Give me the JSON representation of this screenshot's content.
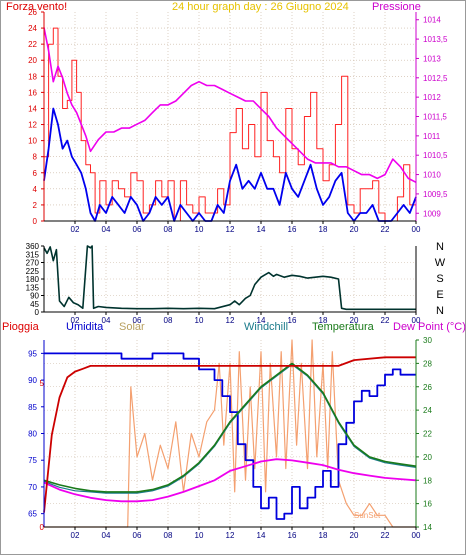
{
  "colors": {
    "background": "#ffffff",
    "wind_avg": "#0000ee",
    "wind_gust": "#ff2222",
    "pressure": "#ee00ee",
    "wind_dir": "#00332e",
    "rain": "#cc0000",
    "humidity": "#0000dd",
    "solar": "#f4a070",
    "windchill": "#1a7a8a",
    "temperature": "#1a7a1a",
    "dew_point": "#ee00ee",
    "axis_red": "#dd0000",
    "axis_blue": "#0000cc",
    "axis_green": "#1a7a1a",
    "axis_magenta": "#cc00cc",
    "grid": "#c9b5a0"
  },
  "chart_data": [
    {
      "id": "wind",
      "type": "line",
      "title": "24 hour graph day : 26 Giugno 2024",
      "xlabel": "",
      "ylabel_left": "Forza vento!",
      "ylabel_right": "Pressione",
      "x_ticks": [
        "02",
        "04",
        "06",
        "08",
        "10",
        "12",
        "14",
        "16",
        "18",
        "20",
        "22",
        "00"
      ],
      "y_left_ticks": [
        "0",
        "2",
        "4",
        "6",
        "8",
        "10",
        "12",
        "14",
        "16",
        "18",
        "20",
        "22",
        "24",
        "26"
      ],
      "y_left_range": [
        0,
        26
      ],
      "y_right_ticks": [
        "1009",
        "1009,5",
        "1010",
        "1010,5",
        "1011",
        "1011,5",
        "1012",
        "1012,5",
        "1013",
        "1013,5",
        "1014"
      ],
      "y_right_range": [
        1008.8,
        1014.2
      ],
      "x_range": [
        0,
        24
      ],
      "series": [
        {
          "key": "gust",
          "color_key": "wind_gust",
          "x": [
            0,
            0.3,
            0.6,
            0.9,
            1.2,
            1.5,
            1.8,
            2.1,
            2.4,
            2.7,
            3.0,
            3.3,
            3.6,
            4.0,
            4.4,
            4.8,
            5.2,
            5.6,
            6.0,
            6.4,
            6.8,
            7.2,
            7.6,
            8.0,
            8.4,
            8.8,
            9.2,
            9.6,
            10.0,
            10.4,
            10.8,
            11.2,
            11.6,
            12.0,
            12.4,
            12.8,
            13.2,
            13.6,
            14.0,
            14.4,
            14.8,
            15.2,
            15.6,
            16.0,
            16.4,
            16.8,
            17.2,
            17.6,
            18.0,
            18.4,
            18.8,
            19.2,
            19.6,
            20.0,
            20.4,
            20.8,
            21.2,
            21.6,
            22.0,
            22.4,
            22.8,
            23.2,
            23.6,
            24.0
          ],
          "values": [
            8,
            22,
            24,
            18,
            14,
            15,
            20,
            16,
            10,
            7,
            6,
            1,
            5,
            2,
            5,
            4,
            3,
            6,
            5,
            1,
            2,
            5,
            3,
            5,
            0,
            5,
            2,
            1,
            3,
            1,
            1,
            4,
            2,
            11,
            14,
            9,
            12,
            8,
            16,
            10,
            8,
            6,
            14,
            9,
            7,
            13,
            16,
            9,
            5,
            7,
            12,
            18,
            2,
            1,
            4,
            4,
            5,
            1,
            0,
            0,
            3,
            7,
            2,
            5
          ]
        },
        {
          "key": "avg",
          "color_key": "wind_avg",
          "x": [
            0,
            0.3,
            0.6,
            0.9,
            1.2,
            1.5,
            1.8,
            2.1,
            2.4,
            2.7,
            3.0,
            3.3,
            3.6,
            4.0,
            4.4,
            4.8,
            5.2,
            5.6,
            6.0,
            6.4,
            6.8,
            7.2,
            7.6,
            8.0,
            8.4,
            8.8,
            9.2,
            9.6,
            10.0,
            10.4,
            10.8,
            11.2,
            11.6,
            12.0,
            12.4,
            12.8,
            13.2,
            13.6,
            14.0,
            14.4,
            14.8,
            15.2,
            15.6,
            16.0,
            16.4,
            16.8,
            17.2,
            17.6,
            18.0,
            18.4,
            18.8,
            19.2,
            19.6,
            20.0,
            20.4,
            20.8,
            21.2,
            21.6,
            22.0,
            22.4,
            22.8,
            23.2,
            23.6,
            24.0
          ],
          "values": [
            5,
            9,
            14,
            12,
            9,
            10,
            8,
            7,
            6,
            4,
            1,
            0,
            2,
            1,
            3,
            2,
            1,
            3,
            2,
            0,
            1,
            3,
            2,
            3,
            0,
            2,
            1,
            0,
            1,
            0,
            0,
            2,
            1,
            5,
            7,
            4,
            5,
            4,
            6,
            4,
            4,
            2,
            6,
            4,
            3,
            5,
            7,
            4,
            2,
            3,
            5,
            6,
            1,
            0,
            1,
            1,
            2,
            0,
            0,
            0,
            1,
            2,
            1,
            3
          ]
        },
        {
          "key": "pressure",
          "color_key": "pressure",
          "axis": "right",
          "x": [
            0,
            0.3,
            0.6,
            0.9,
            1.2,
            1.5,
            1.8,
            2.1,
            2.4,
            2.7,
            3.0,
            3.5,
            4.0,
            4.5,
            5.0,
            5.5,
            6.0,
            6.5,
            7.0,
            7.5,
            8.0,
            8.5,
            9.0,
            9.5,
            10.0,
            10.5,
            11.0,
            11.5,
            12.0,
            12.5,
            13.0,
            13.5,
            14.0,
            14.5,
            15.0,
            15.5,
            16.0,
            16.5,
            17.0,
            17.5,
            18.0,
            18.5,
            19.0,
            19.5,
            20.0,
            20.5,
            21.0,
            21.5,
            22.0,
            22.5,
            23.0,
            23.5,
            24.0
          ],
          "values": [
            1013.8,
            1013.2,
            1012.4,
            1012.8,
            1012.5,
            1012.1,
            1011.8,
            1011.6,
            1011.3,
            1011.0,
            1010.6,
            1010.9,
            1011.1,
            1011.1,
            1011.2,
            1011.2,
            1011.3,
            1011.4,
            1011.6,
            1011.8,
            1011.8,
            1011.9,
            1012.1,
            1012.3,
            1012.4,
            1012.3,
            1012.3,
            1012.2,
            1012.1,
            1012.0,
            1011.9,
            1011.9,
            1011.7,
            1011.5,
            1011.2,
            1011.0,
            1010.8,
            1010.6,
            1010.4,
            1010.3,
            1010.3,
            1010.3,
            1010.2,
            1010.2,
            1010.1,
            1010.0,
            1010.0,
            1009.9,
            1010.0,
            1010.4,
            1010.2,
            1009.9,
            1009.8
          ]
        }
      ]
    },
    {
      "id": "wind_direction",
      "type": "line",
      "title": "",
      "x_ticks": [
        "02",
        "04",
        "06",
        "08",
        "10",
        "12",
        "14",
        "16",
        "18",
        "20",
        "22",
        "00"
      ],
      "y_left_ticks": [
        "0",
        "45",
        "90",
        "135",
        "180",
        "225",
        "270",
        "315",
        "360"
      ],
      "y_left_range": [
        0,
        360
      ],
      "y_right_labels": [
        "N",
        "W",
        "S",
        "E",
        "N"
      ],
      "x_range": [
        0,
        24
      ],
      "series": [
        {
          "key": "direction",
          "color_key": "wind_dir",
          "x": [
            0,
            0.2,
            0.4,
            0.6,
            0.8,
            1.0,
            1.3,
            1.6,
            1.9,
            2.2,
            2.5,
            2.8,
            3.0,
            3.1,
            3.2,
            3.5,
            4.0,
            5.0,
            6.0,
            7.0,
            8.0,
            9.0,
            10.0,
            11.0,
            12.0,
            12.3,
            12.6,
            13.0,
            13.3,
            13.6,
            14.0,
            14.2,
            14.5,
            14.8,
            15.0,
            15.5,
            16.0,
            16.5,
            17.0,
            17.5,
            18.0,
            18.5,
            19.0,
            19.2,
            19.5,
            20.0,
            21.0,
            22.0,
            23.0,
            24.0
          ],
          "values": [
            350,
            320,
            355,
            280,
            340,
            60,
            30,
            80,
            50,
            40,
            20,
            360,
            350,
            360,
            20,
            30,
            25,
            20,
            18,
            18,
            20,
            18,
            20,
            18,
            40,
            60,
            40,
            75,
            90,
            150,
            190,
            200,
            215,
            195,
            205,
            190,
            200,
            195,
            185,
            190,
            195,
            190,
            180,
            20,
            15,
            15,
            15,
            15,
            15,
            15
          ]
        }
      ]
    },
    {
      "id": "climate",
      "type": "line",
      "title": "",
      "legend": [
        "Pioggia",
        "Umidita",
        "Solar",
        "Windchill",
        "Temperatura",
        "Dew Point (°C)"
      ],
      "x_ticks": [
        "02",
        "04",
        "06",
        "08",
        "10",
        "12",
        "14",
        "16",
        "18",
        "20",
        "22",
        "00"
      ],
      "y_left_ticks": [
        "0",
        "5"
      ],
      "y_left_range": [
        0,
        6.5
      ],
      "y_mid_ticks": [
        "65",
        "70",
        "75",
        "80",
        "85",
        "90",
        "95"
      ],
      "y_mid_range": [
        62.5,
        97.5
      ],
      "y_right_ticks": [
        "14",
        "16",
        "18",
        "20",
        "22",
        "24",
        "26",
        "28",
        "30"
      ],
      "y_right_range": [
        14,
        30
      ],
      "annotations": [
        "SunSet"
      ],
      "x_range": [
        0,
        24
      ],
      "series": [
        {
          "key": "rain",
          "color_key": "rain",
          "x": [
            0,
            0.5,
            1.0,
            1.5,
            2.0,
            2.5,
            3.0,
            4.0,
            5.0,
            8.0,
            12.0,
            16.0,
            19.0,
            20.0,
            22.0,
            24.0
          ],
          "values": [
            0.5,
            3.2,
            4.5,
            5.2,
            5.4,
            5.5,
            5.6,
            5.6,
            5.6,
            5.6,
            5.6,
            5.6,
            5.6,
            5.8,
            5.9,
            5.9
          ]
        },
        {
          "key": "humidity",
          "color_key": "humidity",
          "x": [
            0,
            1,
            2,
            3,
            4,
            5,
            6,
            7,
            8,
            9,
            10,
            11,
            11.5,
            12,
            12.5,
            13,
            13.5,
            14,
            14.5,
            15,
            15.5,
            16,
            16.5,
            17,
            17.5,
            18,
            18.5,
            19,
            19.5,
            20,
            20.5,
            21,
            21.5,
            22,
            22.5,
            23,
            24
          ],
          "values": [
            95,
            95,
            95,
            95,
            95,
            94,
            94,
            95,
            95,
            94,
            92,
            90,
            87,
            84,
            78,
            75,
            70,
            66,
            68,
            64,
            65,
            70,
            66,
            68,
            70,
            73,
            70,
            78,
            82,
            86,
            88,
            87,
            89,
            91,
            92,
            91,
            91
          ]
        },
        {
          "key": "solar",
          "color_key": "solar",
          "x": [
            0,
            2,
            4,
            5.4,
            5.6,
            6,
            6.5,
            7,
            7.5,
            8,
            8.5,
            9,
            9.5,
            10,
            10.5,
            11,
            11.3,
            11.6,
            12,
            12.3,
            12.6,
            13,
            13.3,
            13.6,
            14,
            14.3,
            14.6,
            15,
            15.3,
            15.6,
            16,
            16.3,
            16.6,
            17,
            17.3,
            17.6,
            18,
            18.3,
            18.6,
            19,
            19.5,
            20,
            20.5,
            21,
            21.5,
            22,
            22.5,
            23,
            24
          ],
          "values": [
            14,
            14,
            14,
            14,
            26,
            20,
            22,
            18,
            21,
            19,
            23,
            17,
            22,
            20,
            23,
            24,
            28,
            21,
            28,
            17,
            29,
            18,
            26,
            19,
            29,
            17,
            28,
            20,
            29,
            19,
            30,
            21,
            28,
            19,
            30,
            20,
            28,
            19,
            29,
            18,
            16,
            15,
            15,
            16,
            15,
            15,
            14,
            14,
            14
          ]
        },
        {
          "key": "temperature",
          "color_key": "temperature",
          "x": [
            0,
            1,
            2,
            3,
            4,
            5,
            6,
            7,
            8,
            9,
            10,
            11,
            12,
            13,
            14,
            15,
            16,
            17,
            18,
            19,
            20,
            21,
            22,
            23,
            24
          ],
          "values": [
            18,
            17.6,
            17.3,
            17.1,
            17,
            17,
            17,
            17.2,
            17.6,
            18.4,
            19.5,
            21,
            23,
            24.5,
            26,
            27,
            28,
            27,
            25.5,
            23,
            21,
            20,
            19.6,
            19.4,
            19.2
          ]
        },
        {
          "key": "windchill",
          "color_key": "windchill",
          "x": [
            0,
            1,
            2,
            3,
            4,
            5,
            6,
            7,
            8,
            9,
            10,
            11,
            12,
            13,
            14,
            15,
            16,
            17,
            18,
            19,
            20,
            21,
            22,
            23,
            24
          ],
          "values": [
            17.9,
            17.4,
            17.1,
            17,
            16.9,
            16.9,
            16.9,
            17.1,
            17.5,
            18.3,
            19.4,
            20.9,
            22.9,
            24.4,
            25.9,
            26.9,
            27.9,
            26.9,
            25.4,
            22.9,
            20.9,
            19.9,
            19.5,
            19.3,
            19.1
          ]
        },
        {
          "key": "dew_point",
          "color_key": "dew_point",
          "x": [
            0,
            1,
            2,
            3,
            4,
            5,
            6,
            7,
            8,
            9,
            10,
            11,
            12,
            13,
            14,
            15,
            16,
            17,
            18,
            19,
            20,
            21,
            22,
            23,
            24
          ],
          "values": [
            17.8,
            17.2,
            16.8,
            16.5,
            16.3,
            16.2,
            16.2,
            16.3,
            16.6,
            17.0,
            17.5,
            18.0,
            18.8,
            19.2,
            19.6,
            19.8,
            19.7,
            19.5,
            19.3,
            18.9,
            18.6,
            18.4,
            18.2,
            18.1,
            18.0
          ]
        }
      ]
    }
  ]
}
